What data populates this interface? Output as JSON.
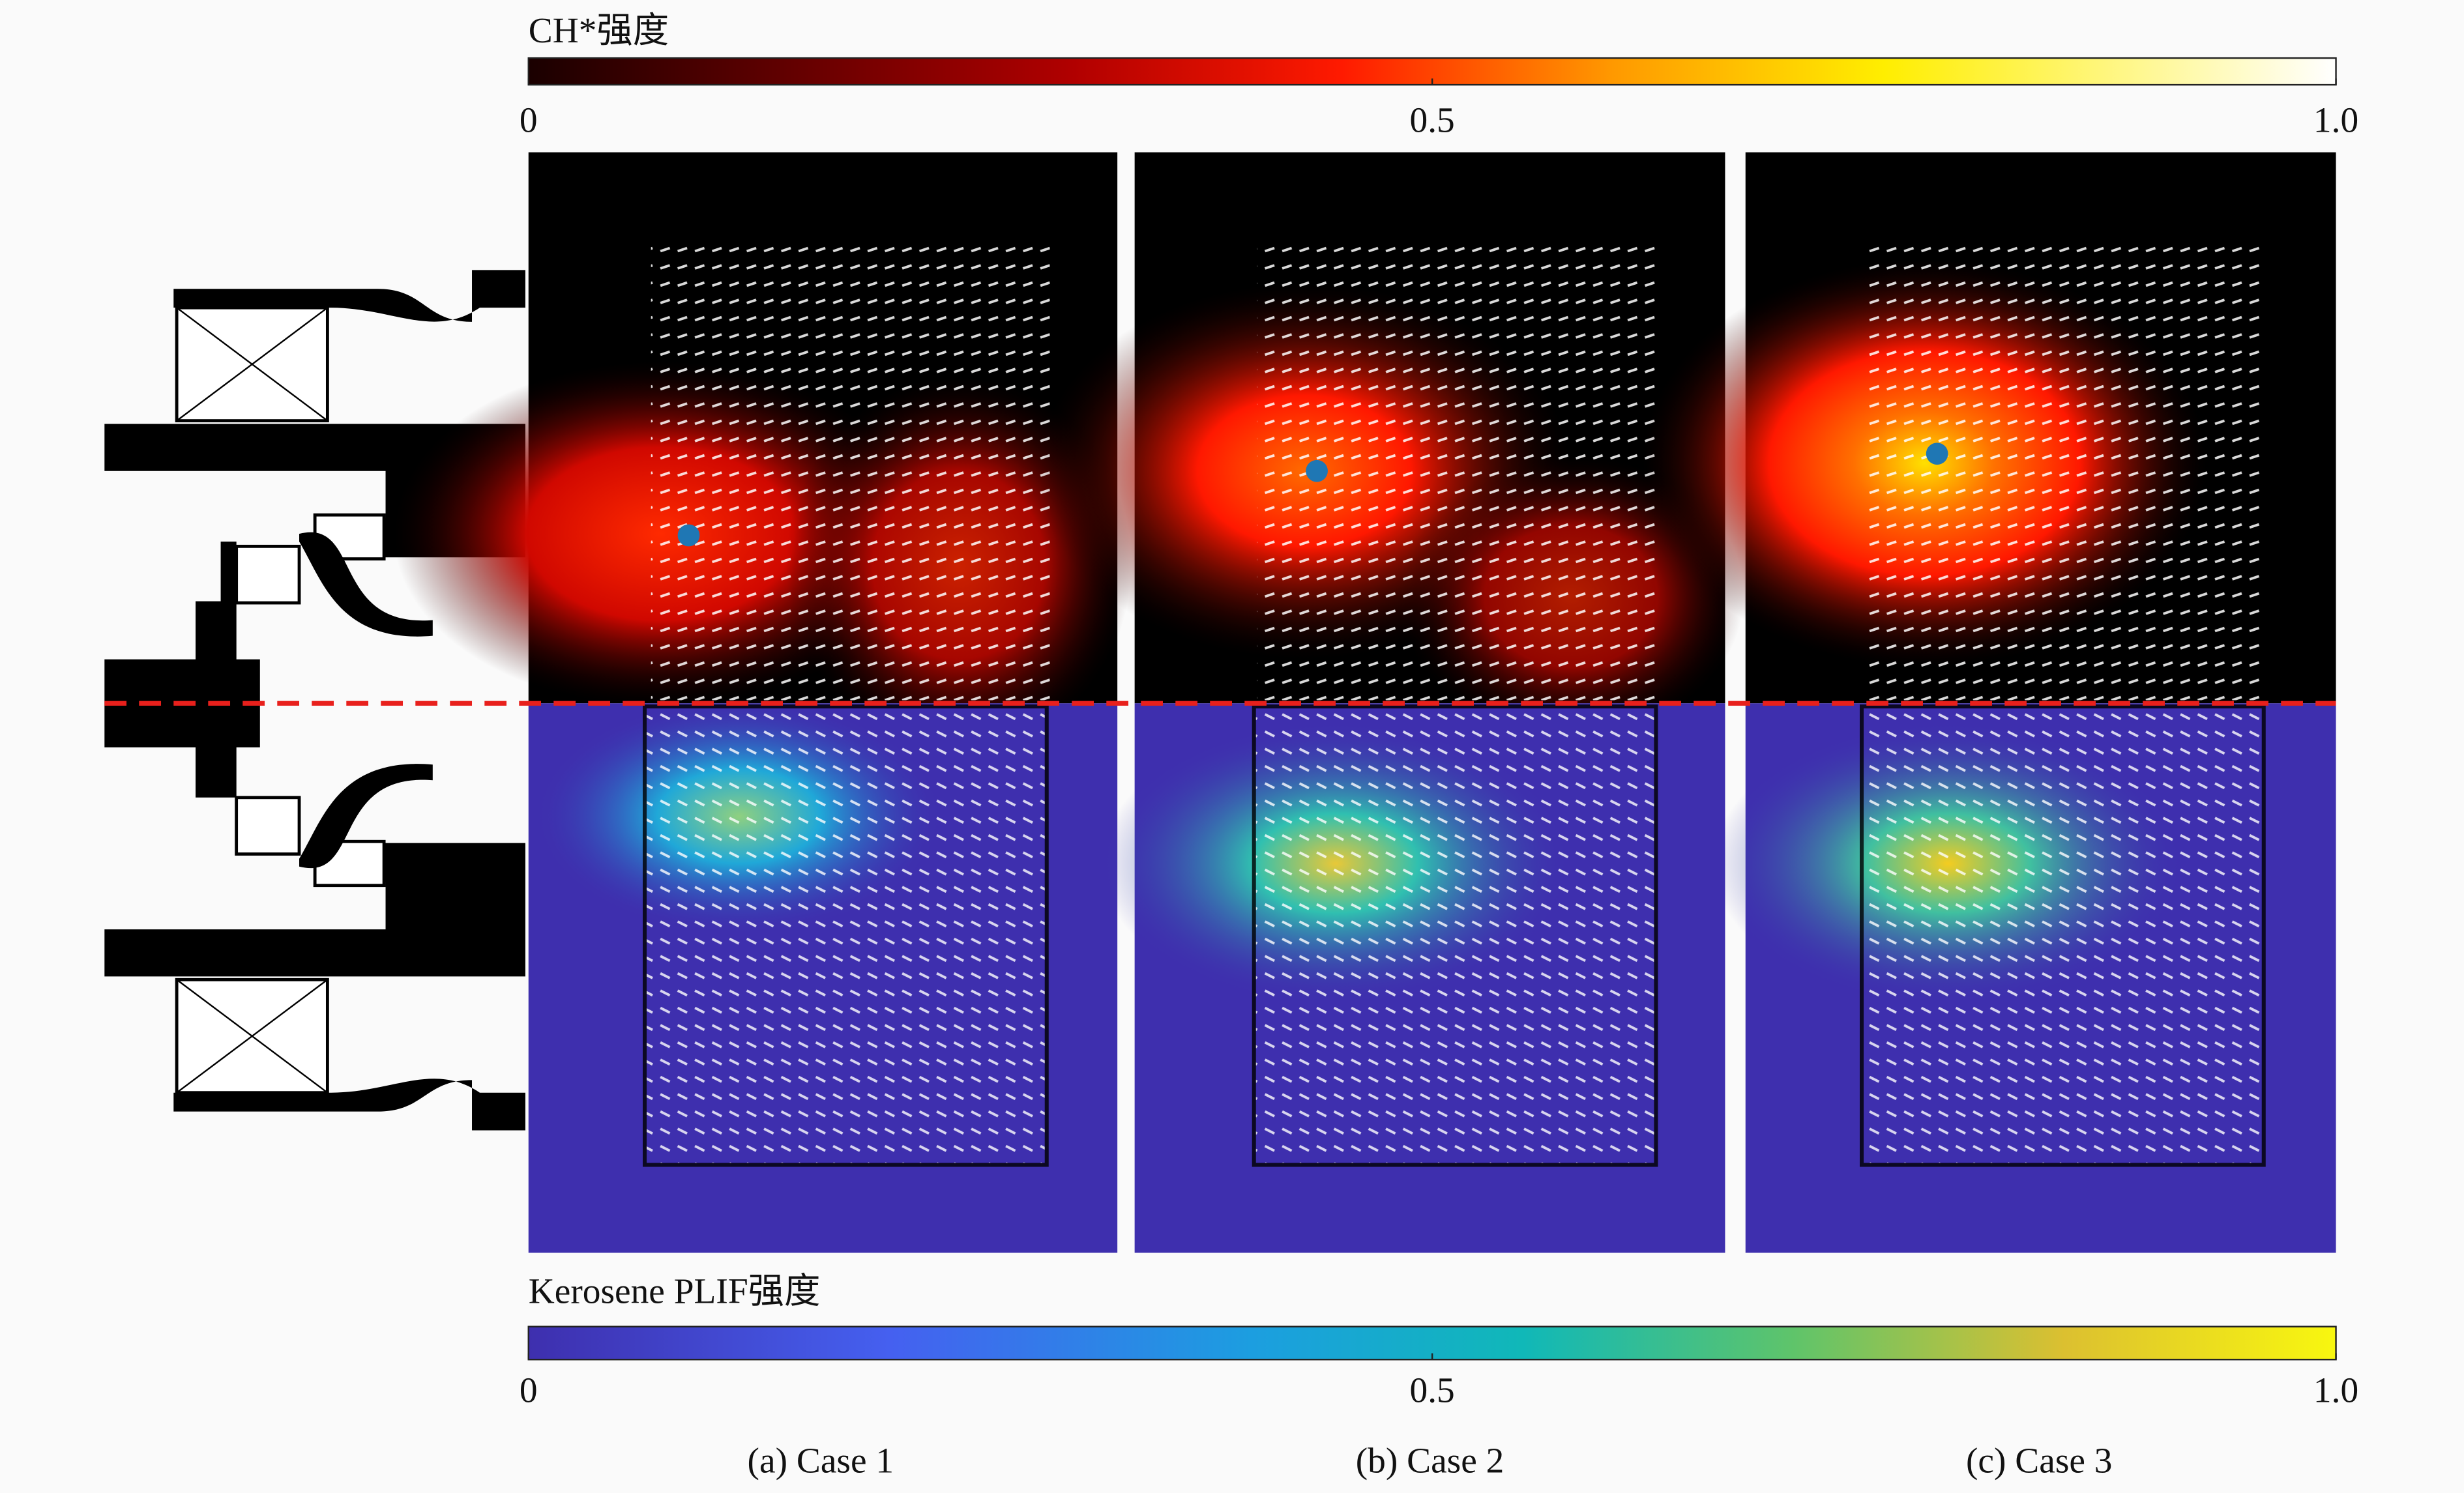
{
  "colorbars": [
    {
      "title": "CH*强度",
      "ticks": [
        0,
        0.5,
        {
          "value": 1,
          "label": "1.0"
        }
      ]
    },
    {
      "title": "Kerosene PLIF强度",
      "ticks": [
        0,
        0.5,
        {
          "value": 1,
          "label": "1.0"
        }
      ]
    }
  ],
  "panels": [
    {
      "caption": "(a) Case 1"
    },
    {
      "caption": "(b) Case 2"
    },
    {
      "caption": "(c) Case 3"
    }
  ]
}
